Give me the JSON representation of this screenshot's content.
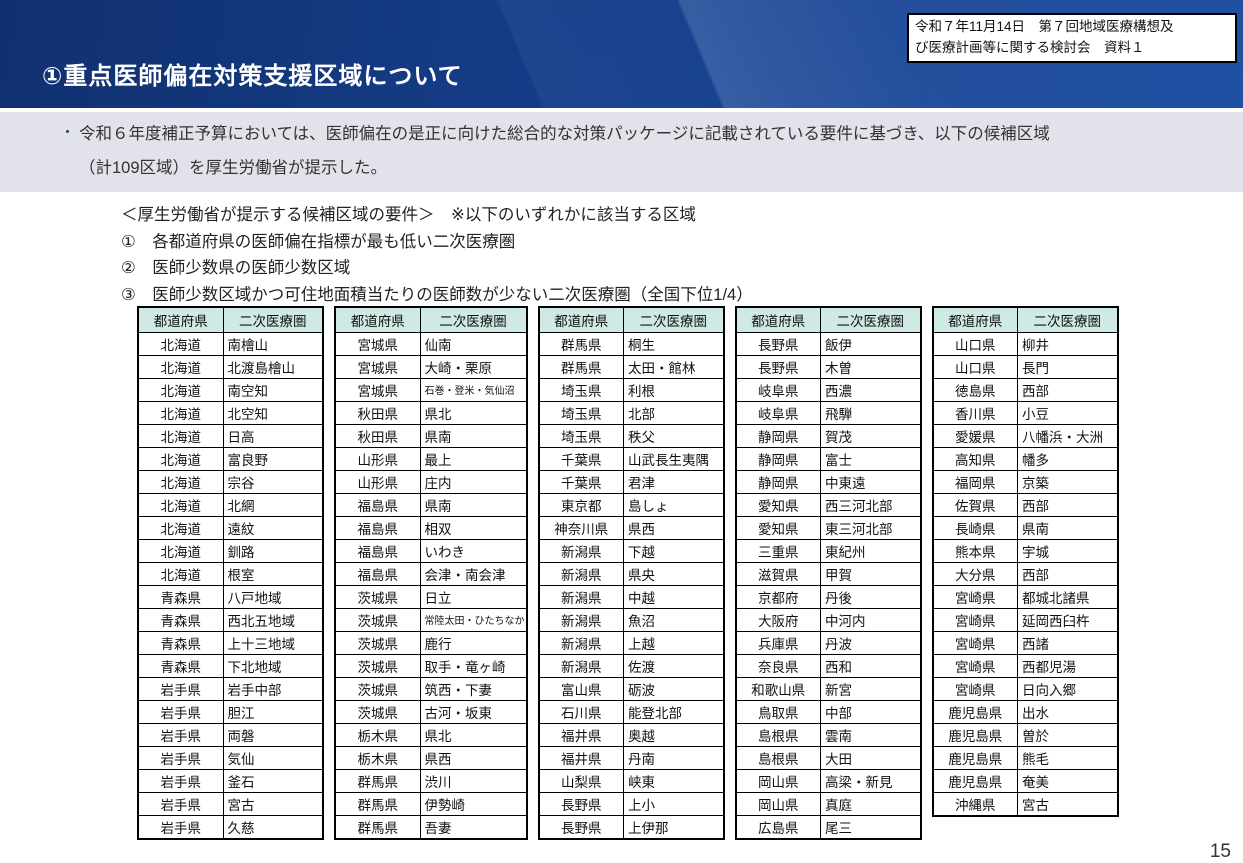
{
  "header": {
    "title": "①重点医師偏在対策支援区域について",
    "doc_ref_line1": "令和７年11月14日　第７回地域医療構想及",
    "doc_ref_line2": "び医療計画等に関する検討会　資料１"
  },
  "intro": {
    "bullet": "・",
    "line1": "令和６年度補正予算においては、医師偏在の是正に向けた総合的な対策パッケージに記載されている要件に基づき、以下の候補区域",
    "line2": "（計109区域）を厚生労働省が提示した。"
  },
  "criteria": {
    "heading": "＜厚生労働省が提示する候補区域の要件＞　※以下のいずれかに該当する区域",
    "items": [
      "①　各都道府県の医師偏在指標が最も低い二次医療圏",
      "②　医師少数県の医師少数区域",
      "③　医師少数区域かつ可住地面積当たりの医師数が少ない二次医療圏（全国下位1/4）"
    ]
  },
  "tables": {
    "headers": [
      "都道府県",
      "二次医療圏"
    ],
    "groups": [
      {
        "rows": [
          [
            "北海道",
            "南檜山"
          ],
          [
            "北海道",
            "北渡島檜山"
          ],
          [
            "北海道",
            "南空知"
          ],
          [
            "北海道",
            "北空知"
          ],
          [
            "北海道",
            "日高"
          ],
          [
            "北海道",
            "富良野"
          ],
          [
            "北海道",
            "宗谷"
          ],
          [
            "北海道",
            "北網"
          ],
          [
            "北海道",
            "遠紋"
          ],
          [
            "北海道",
            "釧路"
          ],
          [
            "北海道",
            "根室"
          ],
          [
            "青森県",
            "八戸地域"
          ],
          [
            "青森県",
            "西北五地域"
          ],
          [
            "青森県",
            "上十三地域"
          ],
          [
            "青森県",
            "下北地域"
          ],
          [
            "岩手県",
            "岩手中部"
          ],
          [
            "岩手県",
            "胆江"
          ],
          [
            "岩手県",
            "両磐"
          ],
          [
            "岩手県",
            "気仙"
          ],
          [
            "岩手県",
            "釜石"
          ],
          [
            "岩手県",
            "宮古"
          ],
          [
            "岩手県",
            "久慈"
          ]
        ]
      },
      {
        "rows": [
          [
            "宮城県",
            "仙南"
          ],
          [
            "宮城県",
            "大崎・栗原"
          ],
          [
            "宮城県",
            "石巻・登米・気仙沼"
          ],
          [
            "秋田県",
            "県北"
          ],
          [
            "秋田県",
            "県南"
          ],
          [
            "山形県",
            "最上"
          ],
          [
            "山形県",
            "庄内"
          ],
          [
            "福島県",
            "県南"
          ],
          [
            "福島県",
            "相双"
          ],
          [
            "福島県",
            "いわき"
          ],
          [
            "福島県",
            "会津・南会津"
          ],
          [
            "茨城県",
            "日立"
          ],
          [
            "茨城県",
            "常陸太田・ひたちなか"
          ],
          [
            "茨城県",
            "鹿行"
          ],
          [
            "茨城県",
            "取手・竜ヶ崎"
          ],
          [
            "茨城県",
            "筑西・下妻"
          ],
          [
            "茨城県",
            "古河・坂東"
          ],
          [
            "栃木県",
            "県北"
          ],
          [
            "栃木県",
            "県西"
          ],
          [
            "群馬県",
            "渋川"
          ],
          [
            "群馬県",
            "伊勢崎"
          ],
          [
            "群馬県",
            "吾妻"
          ]
        ]
      },
      {
        "rows": [
          [
            "群馬県",
            "桐生"
          ],
          [
            "群馬県",
            "太田・館林"
          ],
          [
            "埼玉県",
            "利根"
          ],
          [
            "埼玉県",
            "北部"
          ],
          [
            "埼玉県",
            "秩父"
          ],
          [
            "千葉県",
            "山武長生夷隅"
          ],
          [
            "千葉県",
            "君津"
          ],
          [
            "東京都",
            "島しょ"
          ],
          [
            "神奈川県",
            "県西"
          ],
          [
            "新潟県",
            "下越"
          ],
          [
            "新潟県",
            "県央"
          ],
          [
            "新潟県",
            "中越"
          ],
          [
            "新潟県",
            "魚沼"
          ],
          [
            "新潟県",
            "上越"
          ],
          [
            "新潟県",
            "佐渡"
          ],
          [
            "富山県",
            "砺波"
          ],
          [
            "石川県",
            "能登北部"
          ],
          [
            "福井県",
            "奥越"
          ],
          [
            "福井県",
            "丹南"
          ],
          [
            "山梨県",
            "峡東"
          ],
          [
            "長野県",
            "上小"
          ],
          [
            "長野県",
            "上伊那"
          ]
        ]
      },
      {
        "rows": [
          [
            "長野県",
            "飯伊"
          ],
          [
            "長野県",
            "木曽"
          ],
          [
            "岐阜県",
            "西濃"
          ],
          [
            "岐阜県",
            "飛騨"
          ],
          [
            "静岡県",
            "賀茂"
          ],
          [
            "静岡県",
            "富士"
          ],
          [
            "静岡県",
            "中東遠"
          ],
          [
            "愛知県",
            "西三河北部"
          ],
          [
            "愛知県",
            "東三河北部"
          ],
          [
            "三重県",
            "東紀州"
          ],
          [
            "滋賀県",
            "甲賀"
          ],
          [
            "京都府",
            "丹後"
          ],
          [
            "大阪府",
            "中河内"
          ],
          [
            "兵庫県",
            "丹波"
          ],
          [
            "奈良県",
            "西和"
          ],
          [
            "和歌山県",
            "新宮"
          ],
          [
            "鳥取県",
            "中部"
          ],
          [
            "島根県",
            "雲南"
          ],
          [
            "島根県",
            "大田"
          ],
          [
            "岡山県",
            "高梁・新見"
          ],
          [
            "岡山県",
            "真庭"
          ],
          [
            "広島県",
            "尾三"
          ]
        ]
      },
      {
        "rows": [
          [
            "山口県",
            "柳井"
          ],
          [
            "山口県",
            "長門"
          ],
          [
            "徳島県",
            "西部"
          ],
          [
            "香川県",
            "小豆"
          ],
          [
            "愛媛県",
            "八幡浜・大洲"
          ],
          [
            "高知県",
            "幡多"
          ],
          [
            "福岡県",
            "京築"
          ],
          [
            "佐賀県",
            "西部"
          ],
          [
            "長崎県",
            "県南"
          ],
          [
            "熊本県",
            "宇城"
          ],
          [
            "大分県",
            "西部"
          ],
          [
            "宮崎県",
            "都城北諸県"
          ],
          [
            "宮崎県",
            "延岡西臼杵"
          ],
          [
            "宮崎県",
            "西諸"
          ],
          [
            "宮崎県",
            "西都児湯"
          ],
          [
            "宮崎県",
            "日向入郷"
          ],
          [
            "鹿児島県",
            "出水"
          ],
          [
            "鹿児島県",
            "曽於"
          ],
          [
            "鹿児島県",
            "熊毛"
          ],
          [
            "鹿児島県",
            "奄美"
          ],
          [
            "沖縄県",
            "宮古"
          ]
        ]
      }
    ]
  },
  "page_number": "15",
  "colors": {
    "header_blue": "#15418d",
    "band_gray": "#e2e2eb",
    "table_header_mint": "#cfe9e4",
    "title_text": "#ffffff"
  }
}
